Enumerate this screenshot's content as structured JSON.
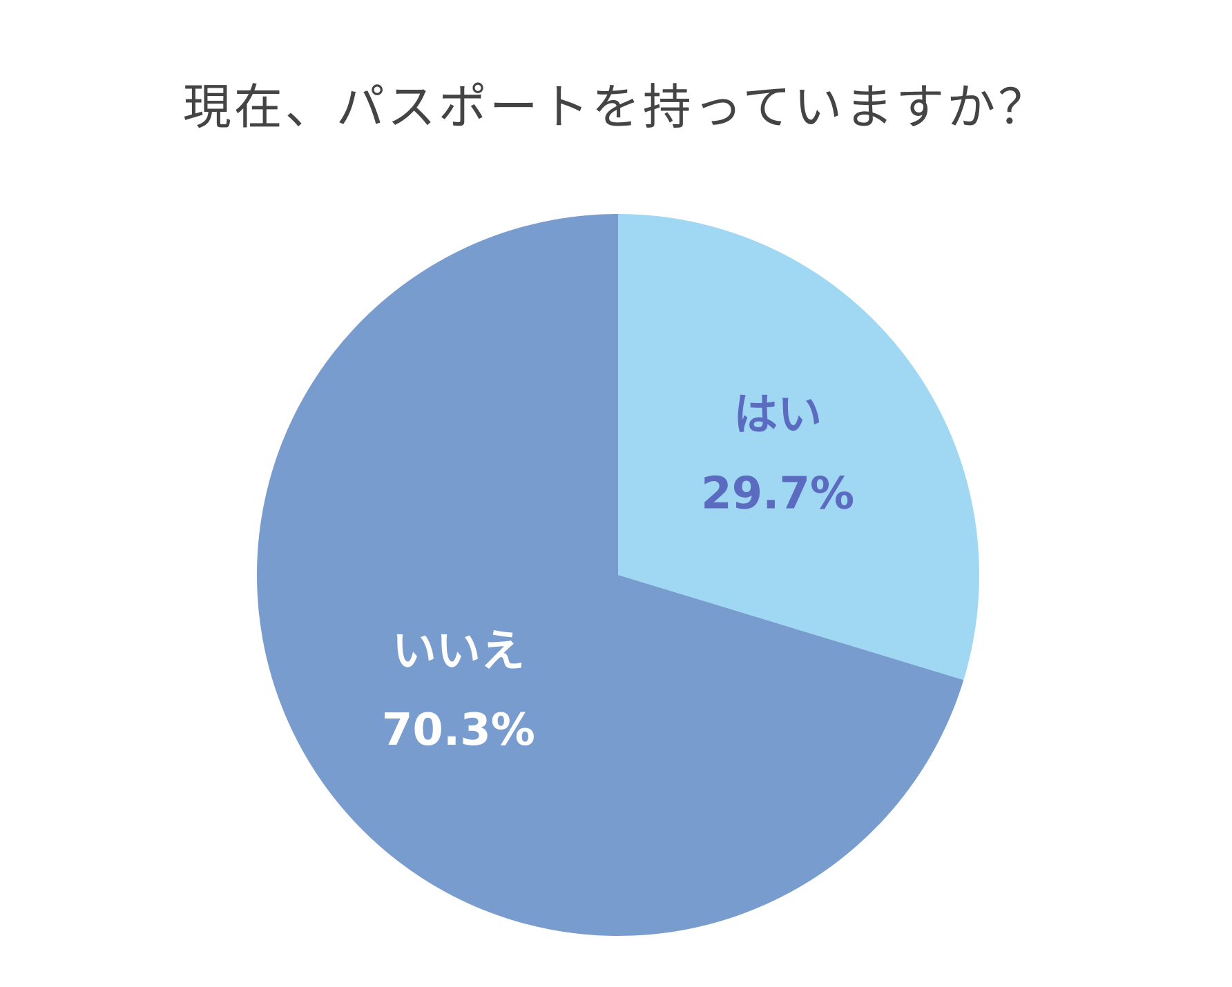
{
  "chart_data": {
    "type": "pie",
    "title": "現在、パスポートを持っていますか？",
    "categories": [
      "はい",
      "いいえ"
    ],
    "values": [
      29.7,
      70.3
    ],
    "value_labels": [
      "29.7%",
      "70.3%"
    ],
    "colors": [
      "#a0d8f3",
      "#799cce"
    ],
    "label_colors": [
      "#5b6bc0",
      "#ffffff"
    ]
  }
}
